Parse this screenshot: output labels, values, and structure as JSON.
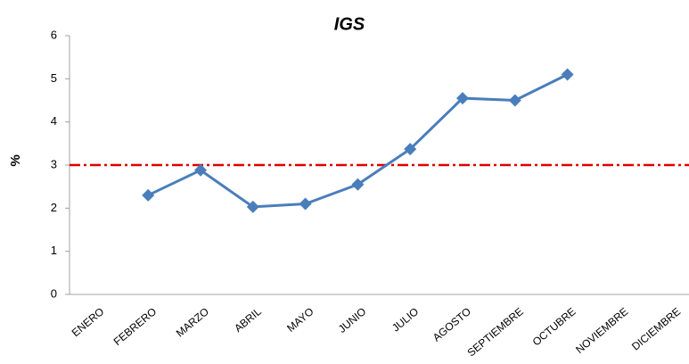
{
  "chart_data": {
    "type": "line",
    "title": "IGS",
    "y_label": "%",
    "categories": [
      "ENERO",
      "FEBRERO",
      "MARZO",
      "ABRIL",
      "MAYO",
      "JUNIO",
      "JULIO",
      "AGOSTO",
      "SEPTIEMBRE",
      "OCTUBRE",
      "NOVIEMBRE",
      "DICIEMBRE"
    ],
    "series": [
      {
        "color": "#4a7ebb",
        "values": [
          null,
          2.3,
          2.88,
          2.03,
          2.1,
          2.55,
          3.37,
          4.55,
          4.5,
          5.1,
          null,
          null
        ]
      }
    ],
    "threshold": {
      "value": 3,
      "color": "#e00000"
    },
    "ylim": [
      0,
      6
    ],
    "yticks": [
      0,
      1,
      2,
      3,
      4,
      5,
      6
    ],
    "grid": false
  }
}
